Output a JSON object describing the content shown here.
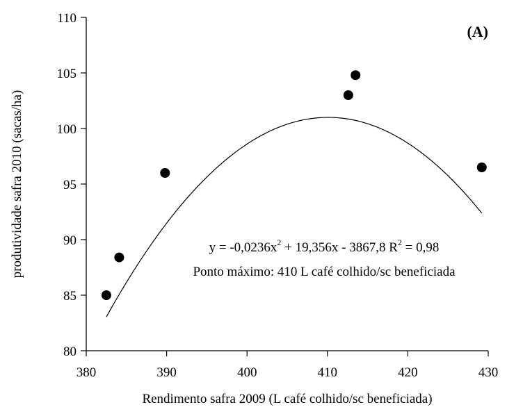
{
  "chart_data": {
    "type": "scatter",
    "panel_label": "(A)",
    "xlabel": "Rendimento safra 2009 (L café colhido/sc beneficiada)",
    "ylabel": "produtividade safra 2010 (sacas/ha)",
    "xlim": [
      380,
      430
    ],
    "ylim": [
      80,
      110
    ],
    "x_ticks": [
      380,
      390,
      400,
      410,
      420,
      430
    ],
    "y_ticks": [
      80,
      85,
      90,
      95,
      100,
      105,
      110
    ],
    "x_tick_labels": [
      "380",
      "390",
      "400",
      "410",
      "420",
      "430"
    ],
    "y_tick_labels": [
      "80",
      "85",
      "90",
      "95",
      "100",
      "105",
      "110"
    ],
    "grid": false,
    "points": [
      {
        "x": 382.5,
        "y": 85.0
      },
      {
        "x": 384.1,
        "y": 88.4
      },
      {
        "x": 389.8,
        "y": 96.0
      },
      {
        "x": 412.6,
        "y": 103.0
      },
      {
        "x": 413.5,
        "y": 104.8
      },
      {
        "x": 429.2,
        "y": 96.5
      }
    ],
    "trendline": {
      "type": "quadratic",
      "a": -0.0236,
      "b": 19.356,
      "c": -3867.8,
      "x_range": [
        382.5,
        429.2
      ]
    },
    "annotation": {
      "equation_prefix": "y = -0,0236x",
      "equation_exp": "2",
      "equation_mid": " + 19,356x - 3867,8  R",
      "r2_exp": "2",
      "r2_value": " = 0,98",
      "maximum_point": "Ponto máximo: 410 L café colhido/sc beneficiada"
    }
  }
}
